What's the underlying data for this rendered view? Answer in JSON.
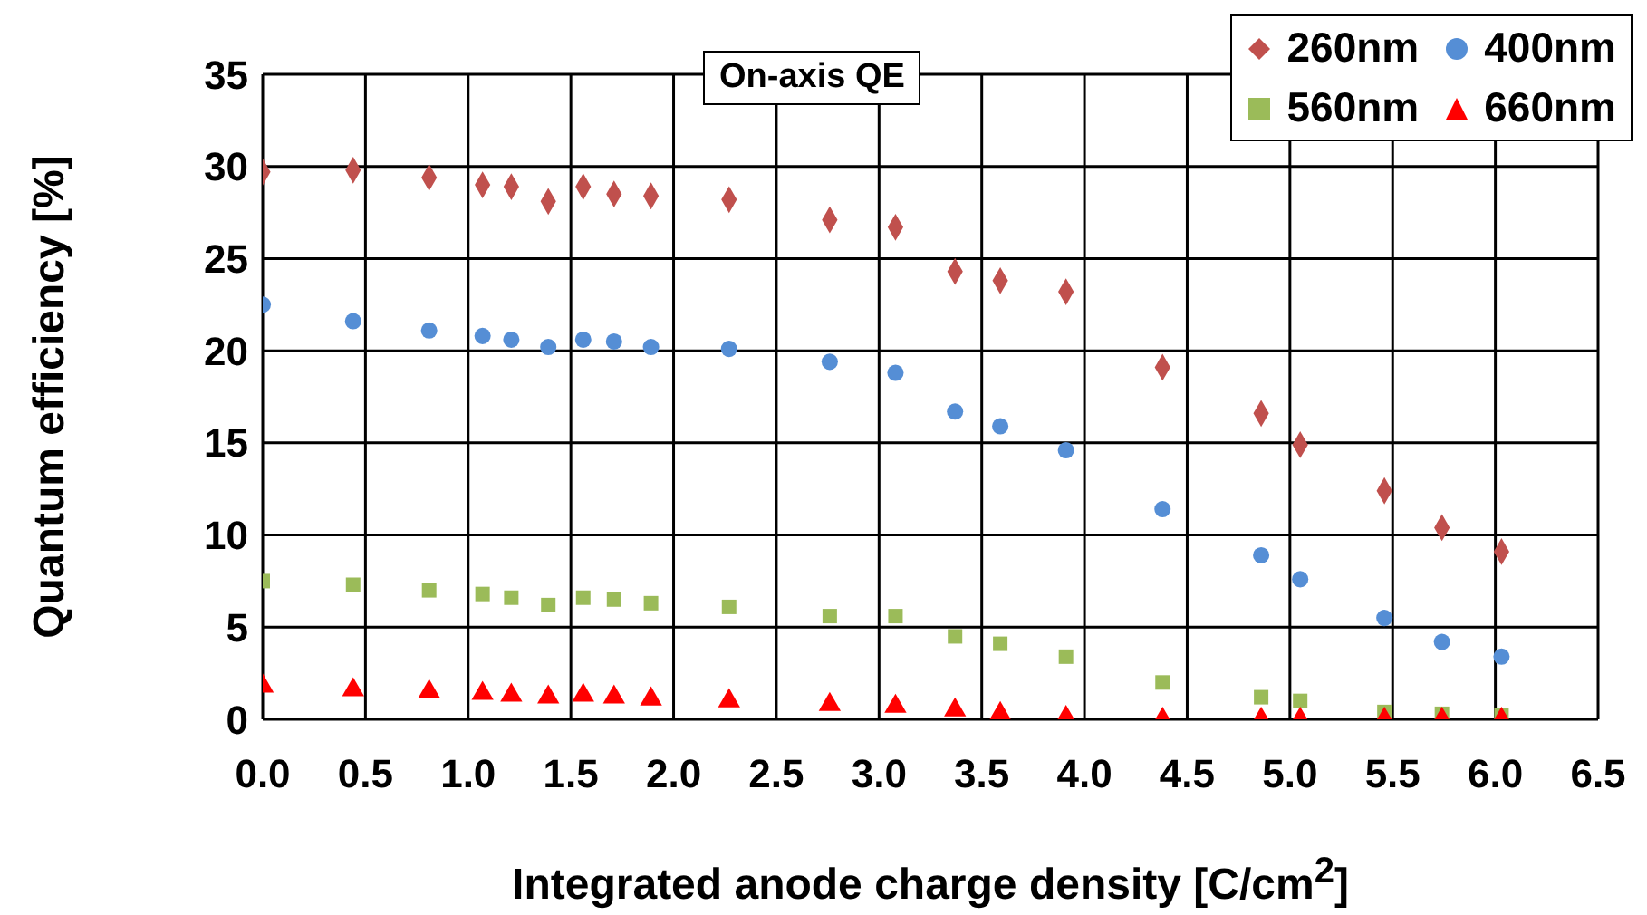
{
  "chart_data": {
    "type": "scatter",
    "title": "On-axis QE",
    "xlabel": "Integrated anode charge density [C/cm$^{2}$]",
    "ylabel": "Quantum efficiency [%]",
    "x": [
      0.0,
      0.44,
      0.81,
      1.07,
      1.21,
      1.39,
      1.56,
      1.71,
      1.89,
      2.27,
      2.76,
      3.08,
      3.37,
      3.59,
      3.91,
      4.38,
      4.86,
      5.05,
      5.46,
      5.74,
      6.03
    ],
    "series": [
      {
        "name": "260nm",
        "color": "#c0504d",
        "marker": "diamond",
        "values": [
          29.7,
          29.8,
          29.4,
          29.0,
          28.9,
          28.1,
          28.9,
          28.5,
          28.4,
          28.2,
          27.1,
          26.7,
          24.3,
          23.8,
          23.2,
          19.1,
          16.6,
          14.9,
          12.4,
          10.4,
          9.1
        ]
      },
      {
        "name": "400nm",
        "color": "#558ed5",
        "marker": "circle",
        "values": [
          22.5,
          21.6,
          21.1,
          20.8,
          20.6,
          20.2,
          20.6,
          20.5,
          20.2,
          20.1,
          19.4,
          18.8,
          16.7,
          15.9,
          14.6,
          11.4,
          8.9,
          7.6,
          5.5,
          4.2,
          3.4
        ]
      },
      {
        "name": "560nm",
        "color": "#9bbb59",
        "marker": "square",
        "values": [
          7.5,
          7.3,
          7.0,
          6.8,
          6.6,
          6.2,
          6.6,
          6.5,
          6.3,
          6.1,
          5.6,
          5.6,
          4.5,
          4.1,
          3.4,
          2.0,
          1.2,
          1.0,
          0.4,
          0.3,
          0.2
        ]
      },
      {
        "name": "660nm",
        "color": "#ff0000",
        "marker": "triangle",
        "values": [
          1.8,
          1.6,
          1.5,
          1.4,
          1.3,
          1.2,
          1.3,
          1.2,
          1.1,
          1.0,
          0.8,
          0.7,
          0.5,
          0.3,
          0.1,
          0,
          0,
          0,
          0,
          0,
          0
        ]
      }
    ],
    "xlim": [
      0,
      6.5
    ],
    "xticks": [
      {
        "value": 0,
        "label": "0.0"
      },
      {
        "value": 0.5,
        "label": "0.5"
      },
      {
        "value": 1,
        "label": "1.0"
      },
      {
        "value": 1.5,
        "label": "1.5"
      },
      {
        "value": 2,
        "label": "2.0"
      },
      {
        "value": 2.5,
        "label": "2.5"
      },
      {
        "value": 3,
        "label": "3.0"
      },
      {
        "value": 3.5,
        "label": "3.5"
      },
      {
        "value": 4,
        "label": "4.0"
      },
      {
        "value": 4.5,
        "label": "4.5"
      },
      {
        "value": 5,
        "label": "5.0"
      },
      {
        "value": 5.5,
        "label": "5.5"
      },
      {
        "value": 6,
        "label": "6.0"
      },
      {
        "value": 6.5,
        "label": "6.5"
      }
    ],
    "ylim": [
      0,
      35
    ],
    "yticks": [
      0,
      5,
      10,
      15,
      20,
      25,
      30,
      35
    ],
    "grid": true,
    "legend": "top right"
  }
}
